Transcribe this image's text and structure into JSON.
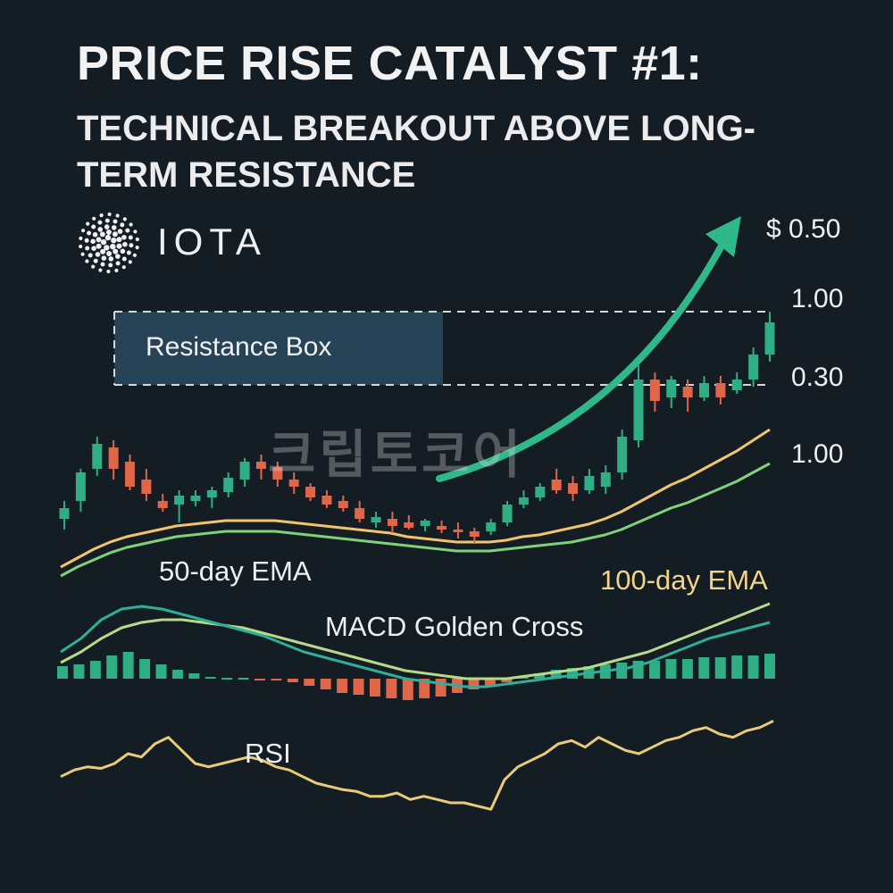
{
  "header": {
    "title": "PRICE RISE CATALYST #1:",
    "subtitle": "TECHNICAL BREAKOUT ABOVE LONG-TERM RESISTANCE"
  },
  "brand": {
    "name": "IOTA",
    "logo_icon": "iota-dots-logo-icon"
  },
  "watermark": "크립토코어",
  "colors": {
    "background": "#141c24",
    "bull": "#2fae84",
    "bear": "#e0664a",
    "ema50": "#7fd27a",
    "ema100": "#f3c46e",
    "macd_line": "#2fae9a",
    "signal_line": "#b7d98a",
    "rsi": "#e8cc7a",
    "arrow": "#2fb889",
    "resistance_box": "#2a4a60"
  },
  "chart_data": {
    "type": "candlestick",
    "title": "PRICE RISE CATALYST #1:",
    "subtitle": "TECHNICAL BREAKOUT ABOVE LONG-TERM RESISTANCE",
    "price_labels": [
      "$ 0.50",
      "1.00",
      "0.30",
      "1.00"
    ],
    "resistance": {
      "label": "Resistance Box",
      "upper": 1.0,
      "lower": 0.3
    },
    "price_range": [
      0.0,
      1.3
    ],
    "candles": [
      {
        "o": 0.12,
        "h": 0.22,
        "l": 0.06,
        "c": 0.18
      },
      {
        "o": 0.22,
        "h": 0.4,
        "l": 0.16,
        "c": 0.38
      },
      {
        "o": 0.4,
        "h": 0.58,
        "l": 0.36,
        "c": 0.54
      },
      {
        "o": 0.52,
        "h": 0.56,
        "l": 0.34,
        "c": 0.4
      },
      {
        "o": 0.44,
        "h": 0.48,
        "l": 0.28,
        "c": 0.3
      },
      {
        "o": 0.34,
        "h": 0.4,
        "l": 0.22,
        "c": 0.26
      },
      {
        "o": 0.22,
        "h": 0.26,
        "l": 0.16,
        "c": 0.18
      },
      {
        "o": 0.2,
        "h": 0.28,
        "l": 0.1,
        "c": 0.25
      },
      {
        "o": 0.22,
        "h": 0.28,
        "l": 0.19,
        "c": 0.25
      },
      {
        "o": 0.24,
        "h": 0.3,
        "l": 0.18,
        "c": 0.28
      },
      {
        "o": 0.27,
        "h": 0.38,
        "l": 0.24,
        "c": 0.35
      },
      {
        "o": 0.34,
        "h": 0.46,
        "l": 0.3,
        "c": 0.44
      },
      {
        "o": 0.44,
        "h": 0.48,
        "l": 0.34,
        "c": 0.4
      },
      {
        "o": 0.41,
        "h": 0.44,
        "l": 0.3,
        "c": 0.34
      },
      {
        "o": 0.34,
        "h": 0.38,
        "l": 0.26,
        "c": 0.3
      },
      {
        "o": 0.3,
        "h": 0.32,
        "l": 0.22,
        "c": 0.24
      },
      {
        "o": 0.25,
        "h": 0.28,
        "l": 0.18,
        "c": 0.2
      },
      {
        "o": 0.22,
        "h": 0.25,
        "l": 0.16,
        "c": 0.18
      },
      {
        "o": 0.18,
        "h": 0.22,
        "l": 0.1,
        "c": 0.12
      },
      {
        "o": 0.1,
        "h": 0.16,
        "l": 0.07,
        "c": 0.13
      },
      {
        "o": 0.12,
        "h": 0.16,
        "l": 0.04,
        "c": 0.08
      },
      {
        "o": 0.1,
        "h": 0.14,
        "l": 0.06,
        "c": 0.07
      },
      {
        "o": 0.08,
        "h": 0.12,
        "l": 0.05,
        "c": 0.11
      },
      {
        "o": 0.08,
        "h": 0.11,
        "l": 0.04,
        "c": 0.06
      },
      {
        "o": 0.06,
        "h": 0.1,
        "l": 0.01,
        "c": 0.05
      },
      {
        "o": 0.05,
        "h": 0.07,
        "l": -0.02,
        "c": 0.02
      },
      {
        "o": 0.05,
        "h": 0.12,
        "l": 0.03,
        "c": 0.1
      },
      {
        "o": 0.1,
        "h": 0.22,
        "l": 0.08,
        "c": 0.2
      },
      {
        "o": 0.2,
        "h": 0.28,
        "l": 0.18,
        "c": 0.24
      },
      {
        "o": 0.24,
        "h": 0.32,
        "l": 0.22,
        "c": 0.3
      },
      {
        "o": 0.34,
        "h": 0.4,
        "l": 0.26,
        "c": 0.28
      },
      {
        "o": 0.32,
        "h": 0.36,
        "l": 0.22,
        "c": 0.26
      },
      {
        "o": 0.28,
        "h": 0.4,
        "l": 0.26,
        "c": 0.36
      },
      {
        "o": 0.3,
        "h": 0.42,
        "l": 0.26,
        "c": 0.38
      },
      {
        "o": 0.38,
        "h": 0.62,
        "l": 0.34,
        "c": 0.58
      },
      {
        "o": 0.56,
        "h": 0.98,
        "l": 0.52,
        "c": 0.9
      },
      {
        "o": 0.9,
        "h": 0.94,
        "l": 0.72,
        "c": 0.78
      },
      {
        "o": 0.8,
        "h": 0.92,
        "l": 0.74,
        "c": 0.9
      },
      {
        "o": 0.86,
        "h": 0.9,
        "l": 0.72,
        "c": 0.8
      },
      {
        "o": 0.8,
        "h": 0.92,
        "l": 0.78,
        "c": 0.88
      },
      {
        "o": 0.88,
        "h": 0.92,
        "l": 0.76,
        "c": 0.8
      },
      {
        "o": 0.84,
        "h": 0.94,
        "l": 0.82,
        "c": 0.9
      },
      {
        "o": 0.9,
        "h": 1.08,
        "l": 0.86,
        "c": 1.04
      },
      {
        "o": 1.04,
        "h": 1.28,
        "l": 1.0,
        "c": 1.22
      }
    ],
    "ema": [
      {
        "name": "50-day EMA",
        "values": [
          -0.05,
          0.0,
          0.04,
          0.08,
          0.11,
          0.13,
          0.15,
          0.17,
          0.18,
          0.19,
          0.2,
          0.2,
          0.2,
          0.2,
          0.19,
          0.18,
          0.17,
          0.16,
          0.15,
          0.14,
          0.13,
          0.12,
          0.11,
          0.1,
          0.09,
          0.09,
          0.09,
          0.1,
          0.11,
          0.12,
          0.13,
          0.14,
          0.16,
          0.18,
          0.21,
          0.25,
          0.29,
          0.33,
          0.36,
          0.4,
          0.44,
          0.48,
          0.53,
          0.58
        ]
      },
      {
        "name": "100-day EMA",
        "values": [
          0.0,
          0.05,
          0.1,
          0.14,
          0.17,
          0.19,
          0.21,
          0.23,
          0.24,
          0.25,
          0.26,
          0.26,
          0.26,
          0.26,
          0.25,
          0.24,
          0.23,
          0.22,
          0.21,
          0.2,
          0.19,
          0.17,
          0.16,
          0.15,
          0.14,
          0.14,
          0.14,
          0.15,
          0.17,
          0.18,
          0.2,
          0.22,
          0.24,
          0.27,
          0.31,
          0.36,
          0.41,
          0.46,
          0.5,
          0.55,
          0.6,
          0.65,
          0.71,
          0.77
        ]
      }
    ],
    "macd": {
      "label": "MACD Golden Cross",
      "histogram": [
        0.7,
        0.8,
        1.0,
        1.3,
        1.5,
        1.1,
        0.8,
        0.5,
        0.3,
        0.1,
        0.05,
        0.05,
        -0.05,
        -0.1,
        -0.2,
        -0.4,
        -0.6,
        -0.8,
        -0.9,
        -1.0,
        -1.1,
        -1.2,
        -1.1,
        -1.0,
        -0.8,
        -0.6,
        -0.4,
        -0.2,
        0.1,
        0.3,
        0.5,
        0.6,
        0.7,
        0.8,
        0.9,
        1.0,
        1.0,
        1.1,
        1.1,
        1.2,
        1.2,
        1.3,
        1.3,
        1.4
      ],
      "macd_line": [
        1.0,
        1.5,
        2.2,
        2.6,
        2.7,
        2.6,
        2.4,
        2.2,
        2.0,
        1.8,
        1.6,
        1.3,
        1.0,
        0.8,
        0.6,
        0.4,
        0.2,
        0.0,
        -0.1,
        -0.2,
        -0.3,
        -0.3,
        -0.2,
        -0.1,
        0.0,
        0.1,
        0.2,
        0.3,
        0.4,
        0.6,
        0.9,
        1.2,
        1.5,
        1.7,
        1.9,
        2.1
      ],
      "signal_line": [
        0.6,
        1.0,
        1.5,
        1.9,
        2.1,
        2.2,
        2.2,
        2.1,
        2.0,
        1.9,
        1.7,
        1.5,
        1.3,
        1.1,
        0.9,
        0.7,
        0.5,
        0.3,
        0.2,
        0.1,
        0.0,
        0.0,
        0.0,
        0.1,
        0.2,
        0.3,
        0.4,
        0.6,
        0.8,
        1.0,
        1.3,
        1.6,
        1.9,
        2.2,
        2.5,
        2.8
      ]
    },
    "rsi": {
      "label": "RSI",
      "values": [
        42,
        46,
        48,
        47,
        50,
        56,
        54,
        62,
        66,
        58,
        50,
        48,
        50,
        52,
        54,
        52,
        48,
        46,
        42,
        38,
        36,
        34,
        33,
        30,
        30,
        32,
        28,
        30,
        28,
        26,
        26,
        24,
        22,
        40,
        48,
        52,
        56,
        62,
        64,
        60,
        66,
        62,
        58,
        56,
        60,
        64,
        66,
        70,
        72,
        68,
        66,
        70,
        72,
        76
      ]
    },
    "legend": [
      {
        "label": "50-day EMA",
        "placement": "left"
      },
      {
        "label": "100-day EMA",
        "placement": "right"
      }
    ],
    "grid": false
  }
}
